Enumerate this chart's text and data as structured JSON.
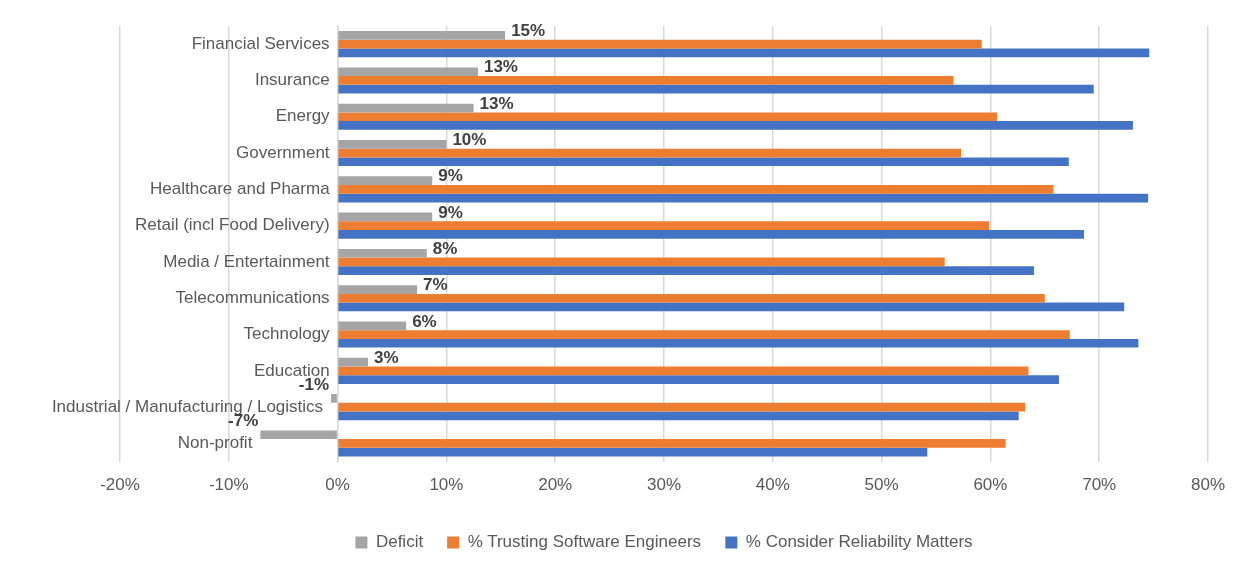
{
  "chart_data": {
    "type": "bar",
    "orientation": "horizontal",
    "categories": [
      "Financial Services",
      "Insurance",
      "Energy",
      "Government",
      "Healthcare and Pharma",
      "Retail (incl Food Delivery)",
      "Media / Entertainment",
      "Telecommunications",
      "Technology",
      "Education",
      "Industrial / Manufacturing / Logistics",
      "Non-profit"
    ],
    "series": [
      {
        "name": "Deficit",
        "color": "#a5a5a5",
        "values": [
          15.4,
          12.9,
          12.5,
          10.0,
          8.7,
          8.7,
          8.2,
          7.3,
          6.3,
          2.8,
          -0.6,
          -7.1
        ],
        "value_labels": [
          "15%",
          "13%",
          "13%",
          "10%",
          "9%",
          "9%",
          "8%",
          "7%",
          "6%",
          "3%",
          "-1%",
          "-7%"
        ]
      },
      {
        "name": "% Trusting Software Engineers",
        "color": "#ed7d31",
        "values": [
          59.2,
          56.6,
          60.6,
          57.3,
          65.8,
          59.9,
          55.8,
          65.0,
          67.3,
          63.5,
          63.2,
          61.4
        ]
      },
      {
        "name": "% Consider Reliability Matters",
        "color": "#4472c4",
        "values": [
          74.6,
          69.5,
          73.1,
          67.2,
          74.5,
          68.6,
          64.0,
          72.3,
          73.6,
          66.3,
          62.6,
          54.2
        ]
      }
    ],
    "xlim": [
      -20,
      80
    ],
    "xticks": [
      {
        "value": -20,
        "label": "-20%"
      },
      {
        "value": -10,
        "label": "-10%"
      },
      {
        "value": 0,
        "label": "0%"
      },
      {
        "value": 10,
        "label": "10%"
      },
      {
        "value": 20,
        "label": "20%"
      },
      {
        "value": 30,
        "label": "30%"
      },
      {
        "value": 40,
        "label": "40%"
      },
      {
        "value": 50,
        "label": "50%"
      },
      {
        "value": 60,
        "label": "60%"
      },
      {
        "value": 70,
        "label": "70%"
      },
      {
        "value": 80,
        "label": "80%"
      }
    ],
    "grid": "x",
    "legend": "bottom"
  }
}
